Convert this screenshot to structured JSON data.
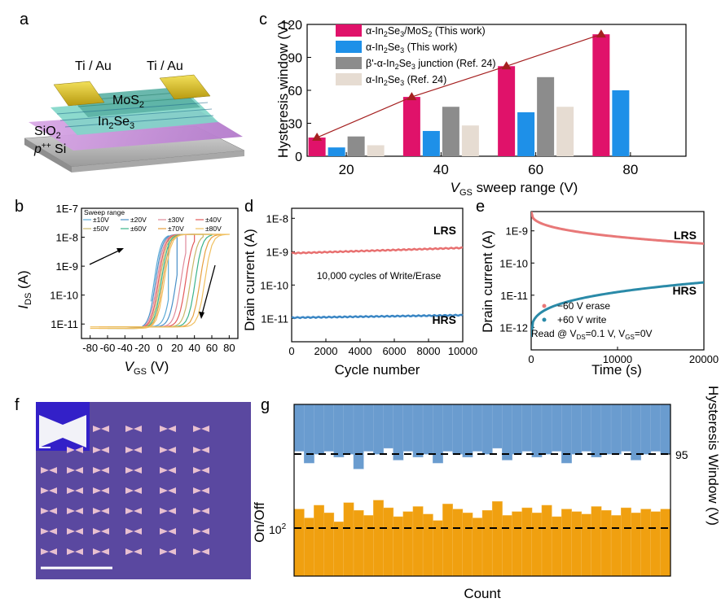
{
  "panel_letters": [
    "a",
    "b",
    "c",
    "d",
    "e",
    "f",
    "g"
  ],
  "schematic": {
    "contact_left": "Ti / Au",
    "contact_right": "Ti / Au",
    "layer_top": "MoS2",
    "layer_mid": "In2Se3",
    "oxide": "SiO2",
    "substrate": "p++ Si"
  },
  "chart_data": [
    {
      "id": "b",
      "type": "line",
      "title": "",
      "xlabel": "VGS (V)",
      "ylabel": "IDS (A)",
      "xlim": [
        -90,
        90
      ],
      "ylim_log10": [
        -11.5,
        -7
      ],
      "x_ticks": [
        -80,
        -60,
        -40,
        -20,
        0,
        20,
        40,
        60,
        80
      ],
      "y_tick_labels": [
        "1E-7",
        "1E-8",
        "1E-9",
        "1E-10",
        "1E-11"
      ],
      "y_tick_exps": [
        -7,
        -8,
        -9,
        -10,
        -11
      ],
      "legend_title": "Sweep range",
      "series": [
        {
          "name": "±10V",
          "range": 10,
          "color": "#5aa9d6"
        },
        {
          "name": "±20V",
          "range": 20,
          "color": "#4a90c8"
        },
        {
          "name": "±30V",
          "range": 30,
          "color": "#e08a9a"
        },
        {
          "name": "±40V",
          "range": 40,
          "color": "#e35a5a"
        },
        {
          "name": "±50V",
          "range": 50,
          "color": "#c9b86a"
        },
        {
          "name": "±60V",
          "range": 60,
          "color": "#3bb38a"
        },
        {
          "name": "±70V",
          "range": 70,
          "color": "#e6a040"
        },
        {
          "name": "±80V",
          "range": 80,
          "color": "#f0c060"
        }
      ]
    },
    {
      "id": "c",
      "type": "bar",
      "xlabel": "VGS sweep range (V)",
      "ylabel": "Hysteresis window (V)",
      "categories": [
        "20",
        "40",
        "60",
        "80"
      ],
      "ylim": [
        0,
        120
      ],
      "y_ticks": [
        0,
        30,
        60,
        90,
        120
      ],
      "series": [
        {
          "name": "α-In2Se3/MoS2 (This work)",
          "color": "#e0126a",
          "values": [
            17,
            54,
            82,
            111
          ]
        },
        {
          "name": "α-In2Se3 (This work)",
          "color": "#1e90e8",
          "values": [
            8,
            23,
            40,
            60
          ]
        },
        {
          "name": "β'-α-In2Se3 junction (Ref. 24)",
          "color": "#8c8c8c",
          "values": [
            18,
            45,
            72,
            null
          ]
        },
        {
          "name": "α-In2Se3 (Ref. 24)",
          "color": "#e6dcd2",
          "values": [
            10,
            28,
            45,
            null
          ]
        }
      ],
      "trend_line": {
        "color": "#a52020",
        "values": [
          17,
          54,
          82,
          111
        ]
      }
    },
    {
      "id": "d",
      "type": "line",
      "xlabel": "Cycle number",
      "ylabel": "Drain current (A)",
      "xlim": [
        0,
        10000
      ],
      "x_ticks": [
        0,
        2000,
        4000,
        6000,
        8000,
        10000
      ],
      "ylim_log10": [
        -11.7,
        -7.7
      ],
      "y_tick_labels": [
        "1E-8",
        "1E-9",
        "1E-10",
        "1E-11"
      ],
      "y_tick_exps": [
        -8,
        -9,
        -10,
        -11
      ],
      "annotation": "10,000 cycles of Write/Erase",
      "series": [
        {
          "name": "LRS",
          "color": "#e87070",
          "start": 9e-10,
          "end": 1.3e-09
        },
        {
          "name": "HRS",
          "color": "#3a86c4",
          "start": 1.05e-11,
          "end": 1.25e-11
        }
      ]
    },
    {
      "id": "e",
      "type": "scatter",
      "xlabel": "Time (s)",
      "ylabel": "Drain current (A)",
      "xlim": [
        0,
        20000
      ],
      "x_ticks": [
        0,
        10000,
        20000
      ],
      "ylim_log10": [
        -12.7,
        -8.4
      ],
      "y_tick_labels": [
        "1E-9",
        "1E-10",
        "1E-11",
        "1E-12"
      ],
      "y_tick_exps": [
        -9,
        -10,
        -11,
        -12
      ],
      "read_condition": "Read @ VDS=0.1 V, VGS=0V",
      "series": [
        {
          "name": "LRS",
          "legend": "−60 V erase",
          "color": "#e87878",
          "start": 4e-09,
          "end": 4e-10
        },
        {
          "name": "HRS",
          "legend": "+60 V write",
          "color": "#2a8aa8",
          "start": 5e-13,
          "end": 2.5e-11
        }
      ]
    },
    {
      "id": "g",
      "type": "bar",
      "xlabel": "Count",
      "ylabel_left": "On/Off",
      "ylabel_right": "Hysteresis Window (V)",
      "left_ref_label": "10^2",
      "right_ref_label": "95",
      "top_color": "#6a9ccf",
      "bottom_color": "#f0a010",
      "hysteresis_V": [
        96,
        92,
        95,
        96,
        94,
        95,
        90,
        96,
        95,
        97,
        93,
        96,
        94,
        95,
        92,
        96,
        95,
        94,
        96,
        95,
        97,
        93,
        95,
        96,
        94,
        95,
        96,
        92,
        95,
        96,
        94,
        95,
        95,
        96,
        93,
        95,
        96,
        95
      ],
      "on_off": [
        115,
        108,
        118,
        112,
        105,
        120,
        114,
        110,
        122,
        116,
        109,
        113,
        117,
        111,
        106,
        119,
        115,
        112,
        108,
        114,
        121,
        110,
        113,
        116,
        112,
        118,
        109,
        115,
        113,
        111,
        117,
        114,
        110,
        116,
        112,
        115,
        113,
        115
      ]
    }
  ],
  "micrograph": {
    "description_label": "f"
  }
}
